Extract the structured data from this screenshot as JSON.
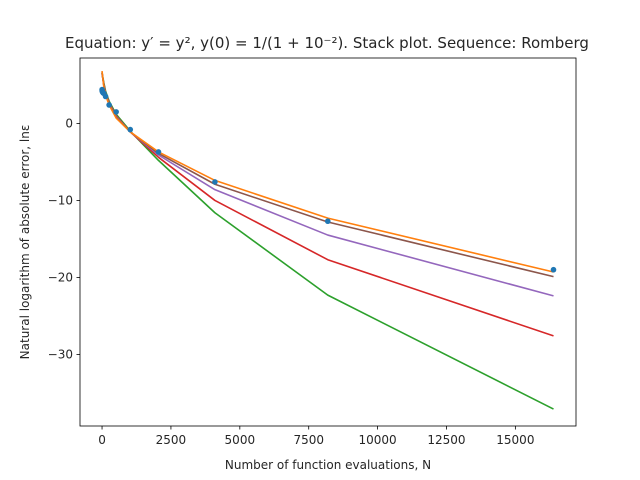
{
  "chart_data": {
    "type": "line",
    "title": "Equation: y′ = y², y(0) = 1/(1 + 10⁻²). Stack plot. Sequence: Romberg",
    "xlabel": "Number of function evaluations, N",
    "ylabel": "Natural logarithm of absolute error, lnε",
    "xlim": [
      -800,
      17200
    ],
    "ylim": [
      -39.3,
      8.5
    ],
    "xticks": [
      0,
      2500,
      5000,
      7500,
      10000,
      12500,
      15000
    ],
    "xtick_labels": [
      "0",
      "2500",
      "5000",
      "7500",
      "10000",
      "12500",
      "15000"
    ],
    "yticks": [
      0,
      -10,
      -20,
      -30
    ],
    "ytick_labels": [
      "0",
      "−10",
      "−20",
      "−30"
    ],
    "grid": false,
    "colors": {
      "blue": "#1f77b4",
      "orange": "#ff7f0e",
      "green": "#2ca02c",
      "red": "#d62728",
      "purple": "#9467bd",
      "brown": "#8c564b"
    },
    "series": [
      {
        "color": "green",
        "x": [
          0,
          64,
          128,
          256,
          512,
          1024,
          2048,
          4096,
          8192,
          16384
        ],
        "y": [
          6.6,
          5.3,
          4.2,
          2.9,
          1.2,
          -1.0,
          -4.8,
          -11.6,
          -22.3,
          -37.1
        ]
      },
      {
        "color": "red",
        "x": [
          0,
          64,
          128,
          256,
          512,
          1024,
          2048,
          4096,
          8192,
          16384
        ],
        "y": [
          6.5,
          5.1,
          4.0,
          2.7,
          1.0,
          -1.1,
          -4.4,
          -10.0,
          -17.7,
          -27.6
        ]
      },
      {
        "color": "purple",
        "x": [
          0,
          64,
          128,
          256,
          512,
          1024,
          2048,
          4096,
          8192,
          16384
        ],
        "y": [
          6.5,
          5.0,
          3.9,
          2.6,
          0.9,
          -1.1,
          -4.1,
          -8.6,
          -14.5,
          -22.4
        ]
      },
      {
        "color": "brown",
        "x": [
          0,
          64,
          128,
          256,
          512,
          1024,
          2048,
          4096,
          8192,
          16384
        ],
        "y": [
          6.6,
          4.9,
          3.8,
          2.5,
          0.8,
          -1.1,
          -3.9,
          -7.9,
          -12.8,
          -19.9
        ]
      },
      {
        "color": "orange",
        "x": [
          0,
          64,
          128,
          256,
          512,
          1024,
          2048,
          4096,
          8192,
          16384
        ],
        "y": [
          6.8,
          4.8,
          3.7,
          2.4,
          0.7,
          -1.1,
          -3.7,
          -7.4,
          -12.3,
          -19.3
        ]
      }
    ],
    "points": {
      "color": "blue",
      "x": [
        2,
        4,
        8,
        16,
        32,
        64,
        128,
        256,
        512,
        1024,
        2048,
        4096,
        8192,
        16384
      ],
      "y": [
        4.4,
        4.3,
        4.2,
        4.1,
        4.0,
        3.9,
        3.5,
        2.4,
        1.5,
        -0.8,
        -3.7,
        -7.6,
        -12.7,
        -19.0
      ]
    }
  }
}
